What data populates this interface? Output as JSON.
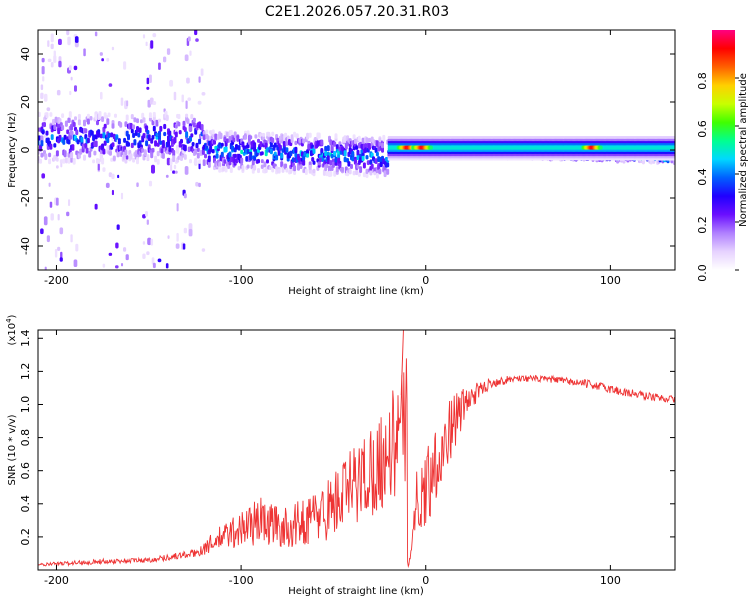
{
  "figure": {
    "title": "C2E1.2026.057.20.31.R03"
  },
  "chart_data": [
    {
      "type": "heatmap",
      "name": "spectrogram",
      "title": "C2E1.2026.057.20.31.R03",
      "xlabel": "Height of straight line (km)",
      "ylabel": "Frequency (Hz)",
      "xlim": [
        -210,
        135
      ],
      "ylim": [
        -50,
        50
      ],
      "xticks": [
        -200,
        -100,
        0,
        100
      ],
      "xtick_labels": [
        "-200",
        "-100",
        "0",
        "100"
      ],
      "yticks": [
        40,
        20,
        0,
        -20,
        -40
      ],
      "ytick_labels": [
        "40",
        "20",
        "0",
        "-20",
        "-40"
      ],
      "colorbar": {
        "label": "Normalized spectral amplitude",
        "range": [
          0,
          1
        ],
        "ticks": [
          0.0,
          0.2,
          0.4,
          0.6,
          0.8
        ],
        "tick_labels": [
          "0.0",
          "0.2",
          "0.4",
          "0.6",
          "0.8"
        ],
        "colormap": [
          "#ffffff",
          "#e6d2ff",
          "#b080ff",
          "#6a0fff",
          "#2000ff",
          "#0060ff",
          "#00d8ff",
          "#00ff90",
          "#40ff00",
          "#c8ff00",
          "#ffd000",
          "#ff6000",
          "#ff0000",
          "#ff0080"
        ]
      },
      "bands": [
        {
          "x_from": -210,
          "x_to": -120,
          "freq_center": 5,
          "freq_halfwidth": 10,
          "peak_amplitude": 0.4,
          "scatter_range": [
            -50,
            50
          ]
        },
        {
          "x_from": -120,
          "x_to": -20,
          "freq_center": 0,
          "freq_halfwidth": 8,
          "peak_amplitude": 0.45
        },
        {
          "x_from": -20,
          "x_to": 135,
          "freq_center": 1,
          "freq_halfwidth": 3,
          "peak_amplitude": 0.95
        }
      ],
      "hotspots": [
        {
          "x": -10,
          "freq": 1,
          "amplitude": 0.95
        },
        {
          "x": -2,
          "freq": 1,
          "amplitude": 0.95
        },
        {
          "x": 90,
          "freq": 1,
          "amplitude": 0.95
        }
      ]
    },
    {
      "type": "line",
      "name": "snr",
      "xlabel": "Height of straight line (km)",
      "ylabel": "SNR (10 * v/v)",
      "yscale_label": "(x10",
      "yscale_exponent": "4",
      "yscale_close": ")",
      "xlim": [
        -210,
        135
      ],
      "ylim": [
        0,
        14500
      ],
      "xticks": [
        -200,
        -100,
        0,
        100
      ],
      "xtick_labels": [
        "-200",
        "-100",
        "0",
        "100"
      ],
      "yticks": [
        2000,
        4000,
        6000,
        8000,
        10000,
        12000,
        14000
      ],
      "ytick_labels": [
        "0.2",
        "0.4",
        "0.6",
        "0.8",
        "1.0",
        "1.2",
        "1.4"
      ],
      "color": "#ee3333",
      "series": [
        {
          "name": "SNR",
          "x": [
            -210,
            -180,
            -150,
            -125,
            -110,
            -90,
            -75,
            -55,
            -40,
            -25,
            -15,
            -10,
            -9.5,
            -5,
            0,
            5,
            10,
            15,
            25,
            35,
            50,
            70,
            90,
            105,
            120,
            135
          ],
          "values": [
            300,
            500,
            600,
            1000,
            2000,
            3000,
            2500,
            3500,
            5000,
            6500,
            8000,
            9000,
            400,
            4000,
            5000,
            6500,
            7500,
            9000,
            10500,
            11300,
            11600,
            11500,
            11200,
            10800,
            10500,
            10300
          ],
          "noise_amplitude": [
            100,
            150,
            150,
            250,
            800,
            1500,
            1200,
            1800,
            2500,
            3000,
            3500,
            4000,
            300,
            2000,
            2500,
            2500,
            2000,
            1800,
            700,
            300,
            200,
            200,
            250,
            300,
            250,
            200
          ]
        }
      ]
    }
  ]
}
